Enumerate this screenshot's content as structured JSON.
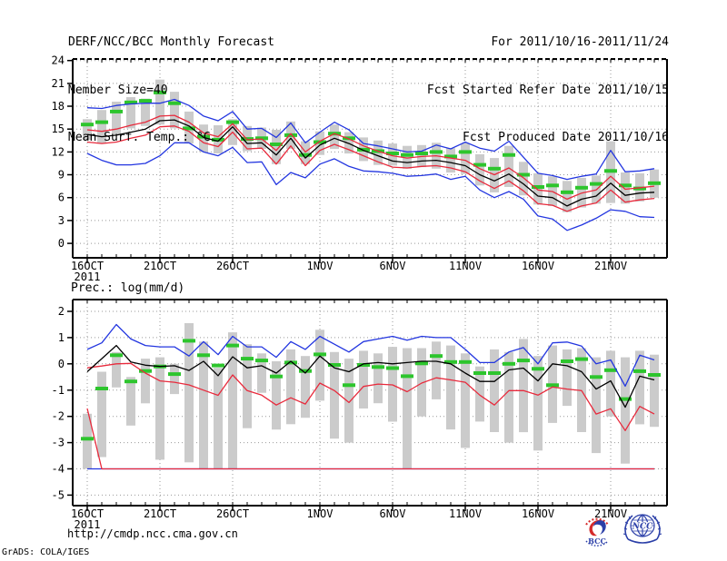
{
  "header": {
    "left": [
      "DERF/NCC/BCC Monthly Forecast",
      "Member Size=40"
    ],
    "right": [
      "For 2011/10/16-2011/11/24",
      "Fcst Started Refer Date 2011/10/15",
      "Fcst Produced Date 2011/10/16"
    ]
  },
  "footer": {
    "url": "http://cmdp.ncc.cma.gov.cn",
    "credit": "GrADS: COLA/IGES",
    "logos": [
      {
        "label": "BCC"
      },
      {
        "label": "NCC"
      }
    ]
  },
  "colors": {
    "blue": "#2336e0",
    "red": "#e82a3c",
    "green": "#2dc52d",
    "gray": "#cbcbcb",
    "black": "#000000",
    "grid": "#999999",
    "logo_blue": "#2b3fa8",
    "logo_red": "#d42a2a"
  },
  "chart_data": [
    {
      "name": "mean-surface-temperature",
      "type": "line",
      "title": "Mean Surf. Temp.: °C",
      "days": 40,
      "x_ticks": [
        {
          "day": 0,
          "label": "16OCT",
          "sub": "2011"
        },
        {
          "day": 5,
          "label": "21OCT"
        },
        {
          "day": 10,
          "label": "26OCT"
        },
        {
          "day": 16,
          "label": "1NOV"
        },
        {
          "day": 21,
          "label": "6NOV"
        },
        {
          "day": 26,
          "label": "11NOV"
        },
        {
          "day": 31,
          "label": "16NOV"
        },
        {
          "day": 36,
          "label": "21NOV"
        }
      ],
      "yticks": [
        0,
        3,
        6,
        9,
        12,
        15,
        18,
        21,
        24
      ],
      "ylim": [
        -1.9,
        24.2
      ],
      "bars": {
        "name": "ensemble-spread-bar",
        "color": "gray",
        "lo": [
          13.6,
          13.1,
          14.3,
          15.1,
          15.4,
          15.6,
          15.1,
          13.1,
          12.0,
          11.8,
          12.9,
          12.1,
          12.4,
          10.4,
          12.4,
          10.4,
          11.6,
          12.4,
          11.8,
          10.8,
          10.3,
          10.2,
          9.8,
          10.0,
          9.8,
          9.3,
          9.1,
          7.6,
          6.7,
          7.4,
          6.3,
          5.1,
          4.9,
          4.1,
          4.7,
          5.2,
          5.3,
          5.2,
          5.5,
          6.0
        ],
        "hi": [
          16.3,
          17.5,
          18.6,
          19.2,
          19.0,
          21.5,
          19.9,
          17.3,
          15.6,
          15.5,
          16.3,
          15.4,
          15.2,
          14.9,
          16.0,
          13.4,
          14.7,
          15.6,
          14.6,
          13.9,
          13.5,
          13.1,
          12.8,
          12.9,
          13.2,
          12.5,
          13.1,
          11.7,
          11.2,
          12.8,
          10.7,
          9.2,
          8.8,
          8.2,
          8.6,
          8.9,
          13.4,
          9.3,
          9.2,
          9.7
        ]
      },
      "obs": {
        "name": "observation-dash",
        "color": "green",
        "values": [
          15.6,
          15.9,
          17.3,
          18.5,
          18.7,
          19.8,
          18.4,
          15.1,
          14.0,
          13.6,
          15.9,
          13.7,
          13.8,
          13.0,
          14.2,
          11.6,
          13.3,
          14.4,
          13.8,
          12.3,
          12.1,
          11.8,
          11.6,
          11.8,
          12.0,
          11.4,
          12.0,
          10.3,
          9.8,
          11.6,
          9.0,
          7.4,
          7.6,
          6.7,
          7.3,
          7.8,
          9.5,
          7.6,
          7.2,
          7.9
        ]
      },
      "series": [
        {
          "name": "member-min",
          "color": "blue",
          "values": [
            11.8,
            10.9,
            10.3,
            10.3,
            10.5,
            11.5,
            13.2,
            13.2,
            12.0,
            11.5,
            12.6,
            10.6,
            10.7,
            7.7,
            9.3,
            8.6,
            10.4,
            11.1,
            10.1,
            9.5,
            9.4,
            9.2,
            8.8,
            8.9,
            9.1,
            8.4,
            8.8,
            7.0,
            6.0,
            6.8,
            5.8,
            3.6,
            3.2,
            1.7,
            2.4,
            3.3,
            4.4,
            4.2,
            3.5,
            3.4
          ]
        },
        {
          "name": "member-max",
          "color": "blue",
          "values": [
            17.8,
            17.7,
            18.1,
            18.3,
            18.4,
            18.4,
            18.9,
            18.1,
            16.7,
            16.1,
            17.3,
            15.0,
            15.1,
            13.9,
            15.8,
            13.2,
            14.6,
            15.9,
            14.9,
            13.1,
            12.8,
            12.4,
            12.0,
            12.1,
            12.9,
            12.4,
            13.3,
            12.5,
            12.1,
            13.4,
            11.3,
            9.2,
            8.9,
            8.4,
            8.8,
            9.1,
            12.2,
            9.4,
            9.5,
            9.8
          ]
        },
        {
          "name": "mean-minus-sd",
          "color": "red",
          "values": [
            13.3,
            13.1,
            13.3,
            13.8,
            14.2,
            15.3,
            15.4,
            14.7,
            13.2,
            12.7,
            14.6,
            12.4,
            12.5,
            10.4,
            12.8,
            10.2,
            12.2,
            13.0,
            12.3,
            11.5,
            10.7,
            10.0,
            9.9,
            10.1,
            10.2,
            9.9,
            9.4,
            8.2,
            7.2,
            8.2,
            6.9,
            5.2,
            5.0,
            4.2,
            4.9,
            5.3,
            7.0,
            5.4,
            5.7,
            5.9
          ]
        },
        {
          "name": "mean-plus-sd",
          "color": "red",
          "values": [
            14.9,
            14.7,
            15.0,
            15.5,
            15.9,
            16.7,
            16.8,
            15.9,
            14.5,
            14.0,
            15.7,
            13.6,
            13.7,
            12.2,
            14.4,
            12.0,
            13.4,
            14.4,
            13.7,
            12.8,
            12.1,
            11.5,
            11.2,
            11.4,
            11.5,
            11.2,
            10.9,
            9.8,
            9.0,
            9.9,
            8.6,
            7.0,
            6.8,
            5.8,
            6.6,
            7.0,
            8.8,
            7.1,
            7.3,
            7.5
          ]
        },
        {
          "name": "ensemble-mean",
          "color": "black",
          "values": [
            14.3,
            14.0,
            14.2,
            14.6,
            15.0,
            16.1,
            16.2,
            15.4,
            13.9,
            13.4,
            15.3,
            13.1,
            13.2,
            11.6,
            13.8,
            11.2,
            12.9,
            13.8,
            13.1,
            12.2,
            11.5,
            10.8,
            10.6,
            10.8,
            10.9,
            10.6,
            10.2,
            9.0,
            8.2,
            9.1,
            7.8,
            6.2,
            6.0,
            4.9,
            5.8,
            6.2,
            7.9,
            6.3,
            6.6,
            6.7
          ]
        }
      ]
    },
    {
      "name": "precipitation",
      "type": "line",
      "title": "Prec.: log(mm/d)",
      "days": 40,
      "x_ticks": [
        {
          "day": 0,
          "label": "16OCT",
          "sub": "2011"
        },
        {
          "day": 5,
          "label": "21OCT"
        },
        {
          "day": 10,
          "label": "26OCT"
        },
        {
          "day": 16,
          "label": "1NOV"
        },
        {
          "day": 21,
          "label": "6NOV"
        },
        {
          "day": 26,
          "label": "11NOV"
        },
        {
          "day": 31,
          "label": "16NOV"
        },
        {
          "day": 36,
          "label": "21NOV"
        }
      ],
      "yticks": [
        2,
        1,
        0,
        -1,
        -2,
        -3,
        -4,
        -5
      ],
      "ylim": [
        -5.4,
        2.45
      ],
      "bars": {
        "name": "ensemble-spread-bar",
        "color": "gray",
        "lo": [
          -4.0,
          -3.55,
          -0.9,
          -2.35,
          -1.5,
          -3.65,
          -1.15,
          -3.75,
          -4.0,
          -4.0,
          -4.0,
          -2.45,
          -1.1,
          -2.5,
          -2.3,
          -2.05,
          -1.4,
          -2.85,
          -3.0,
          -1.7,
          -1.5,
          -2.2,
          -4.0,
          -2.0,
          -1.35,
          -2.5,
          -3.2,
          -2.2,
          -2.6,
          -3.0,
          -2.6,
          -3.3,
          -2.25,
          -1.6,
          -2.6,
          -3.4,
          -2.0,
          -3.8,
          -2.3,
          -2.4
        ],
        "hi": [
          -1.9,
          -0.3,
          0.45,
          -0.5,
          0.2,
          0.25,
          0.0,
          1.55,
          0.85,
          -0.15,
          1.2,
          0.75,
          0.4,
          0.1,
          0.55,
          0.3,
          1.3,
          0.45,
          0.2,
          0.5,
          0.4,
          0.65,
          0.6,
          0.6,
          0.85,
          0.7,
          0.4,
          -0.1,
          0.55,
          0.45,
          0.95,
          0.3,
          0.7,
          0.55,
          0.6,
          0.25,
          0.5,
          0.25,
          0.5,
          0.35
        ]
      },
      "obs": {
        "name": "observation-dash",
        "color": "green",
        "values": [
          -2.85,
          -0.94,
          0.33,
          -0.67,
          -0.27,
          -0.1,
          -0.39,
          0.88,
          0.33,
          -0.06,
          0.7,
          0.2,
          0.13,
          -0.48,
          0.05,
          -0.27,
          0.36,
          -0.04,
          -0.81,
          -0.04,
          -0.12,
          -0.16,
          -0.47,
          0.02,
          0.3,
          0.07,
          0.07,
          -0.35,
          -0.35,
          0.0,
          0.13,
          -0.19,
          -0.81,
          0.1,
          0.18,
          -0.5,
          -0.24,
          -1.34,
          -0.28,
          -0.42
        ]
      },
      "series": [
        {
          "name": "member-min-floor",
          "color": "blue",
          "values": [
            -4,
            -4,
            -4,
            -4,
            -4,
            -4,
            -4,
            -4,
            -4,
            -4,
            -4,
            -4,
            -4,
            -4,
            -4,
            -4,
            -4,
            -4,
            -4,
            -4,
            -4,
            -4,
            -4,
            -4,
            -4,
            -4,
            -4,
            -4,
            -4,
            -4,
            -4,
            -4,
            -4,
            -4,
            -4,
            -4,
            -4,
            -4,
            -4,
            -4
          ]
        },
        {
          "name": "member-max",
          "color": "blue",
          "values": [
            0.55,
            0.8,
            1.5,
            0.95,
            0.7,
            0.65,
            0.65,
            0.3,
            0.85,
            0.35,
            1.05,
            0.65,
            0.65,
            0.25,
            0.85,
            0.55,
            1.05,
            0.75,
            0.45,
            0.85,
            0.95,
            1.05,
            0.9,
            1.05,
            1.0,
            1.0,
            0.55,
            0.05,
            0.05,
            0.45,
            0.62,
            0.0,
            0.8,
            0.83,
            0.68,
            0.0,
            0.15,
            -0.85,
            0.33,
            0.15
          ]
        },
        {
          "name": "mean-minus-sd-floor",
          "color": "red",
          "values": [
            -1.7,
            -4,
            -4,
            -4,
            -4,
            -4,
            -4,
            -4,
            -4,
            -4,
            -4,
            -4,
            -4,
            -4,
            -4,
            -4,
            -4,
            -4,
            -4,
            -4,
            -4,
            -4,
            -4,
            -4,
            -4,
            -4,
            -4,
            -4,
            -4,
            -4,
            -4,
            -4,
            -4,
            -4,
            -4,
            -4,
            -4,
            -4,
            -4,
            -4
          ]
        },
        {
          "name": "lower-quantile",
          "color": "red",
          "values": [
            -0.15,
            -0.08,
            0.0,
            0.02,
            -0.35,
            -0.65,
            -0.7,
            -0.8,
            -1.0,
            -1.2,
            -0.42,
            -1.02,
            -1.19,
            -1.57,
            -1.29,
            -1.53,
            -0.73,
            -1.02,
            -1.47,
            -0.86,
            -0.77,
            -0.8,
            -1.06,
            -0.73,
            -0.53,
            -0.61,
            -0.7,
            -1.19,
            -1.57,
            -1.02,
            -1.02,
            -1.19,
            -0.88,
            -0.96,
            -1.02,
            -1.91,
            -1.71,
            -2.54,
            -1.62,
            -1.91
          ]
        },
        {
          "name": "ensemble-mean",
          "color": "black",
          "values": [
            -0.3,
            0.2,
            0.7,
            0.07,
            -0.05,
            -0.1,
            -0.07,
            -0.25,
            0.1,
            -0.45,
            0.27,
            -0.15,
            -0.07,
            -0.35,
            0.1,
            -0.35,
            0.3,
            -0.15,
            -0.3,
            0.0,
            0.05,
            0.0,
            0.05,
            0.1,
            0.1,
            0.0,
            -0.35,
            -0.67,
            -0.67,
            -0.23,
            -0.16,
            -0.65,
            0.0,
            -0.07,
            -0.3,
            -0.96,
            -0.65,
            -1.65,
            -0.47,
            -0.61
          ]
        }
      ]
    }
  ]
}
